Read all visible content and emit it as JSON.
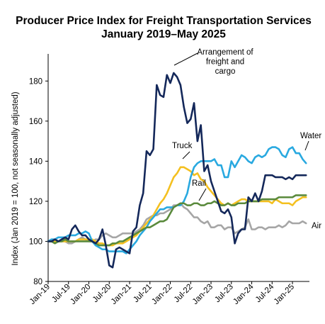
{
  "chart_data": {
    "type": "line",
    "title": "Producer Price Index for Freight Transportation Services",
    "subtitle": "January 2019–May 2025",
    "xlabel": "",
    "ylabel": "Index (Jan 2019 = 100, not seasonally adjusted)",
    "ylim": [
      80,
      190
    ],
    "yticks": [
      "80",
      "100",
      "120",
      "140",
      "160",
      "180"
    ],
    "xticks": [
      "Jan-19",
      "Jul-19",
      "Jan-20",
      "Jul-20",
      "Jan-21",
      "Jul-21",
      "Jan-22",
      "Jul-22",
      "Jan-23",
      "Jul-23",
      "Jan-24",
      "Jul-24",
      "Jan-25"
    ],
    "grid": false,
    "legend": "direct labels",
    "x_start": "2019-01",
    "series": [
      {
        "name": "Arrangement of freight and cargo",
        "color": "#14285a",
        "values": [
          100,
          100,
          101,
          100,
          101,
          102,
          101,
          106,
          108,
          105,
          103,
          103,
          101,
          100,
          99,
          101,
          106,
          98,
          88,
          87,
          96,
          97,
          96,
          95,
          94,
          105,
          107,
          118,
          124,
          145,
          143,
          146,
          178,
          173,
          172,
          183,
          179,
          184,
          182,
          178,
          167,
          159,
          161,
          169,
          150,
          158,
          135,
          138,
          130,
          125,
          120,
          115,
          114,
          116,
          112,
          99,
          104,
          106,
          106,
          122,
          120,
          124,
          120,
          125,
          133,
          133,
          133,
          132,
          132,
          132,
          131,
          132,
          131,
          133,
          133,
          133,
          133
        ]
      },
      {
        "name": "Water",
        "color": "#29a9e0",
        "values": [
          100,
          101,
          101,
          102,
          102,
          102,
          103,
          103,
          103,
          104,
          104,
          105,
          104,
          100,
          98,
          97,
          96,
          96,
          95,
          95,
          95,
          95,
          95,
          94,
          96,
          98,
          100,
          103,
          105,
          107,
          110,
          112,
          114,
          116,
          116,
          117,
          117,
          117,
          118,
          118,
          120,
          124,
          132,
          137,
          139,
          140,
          140,
          140,
          140,
          141,
          138,
          138,
          132,
          132,
          140,
          137,
          140,
          143,
          142,
          140,
          139,
          142,
          143,
          142,
          143,
          146,
          147,
          147,
          146,
          143,
          142,
          146,
          147,
          144,
          144,
          141,
          139
        ]
      },
      {
        "name": "Truck",
        "color": "#f4c020",
        "values": [
          100,
          100,
          100,
          100,
          100,
          100,
          100,
          100,
          100,
          101,
          101,
          101,
          101,
          101,
          100,
          99,
          99,
          98,
          98,
          98,
          99,
          99,
          99,
          100,
          101,
          102,
          103,
          105,
          107,
          109,
          111,
          113,
          116,
          119,
          121,
          124,
          128,
          132,
          134,
          137,
          137,
          136,
          135,
          133,
          134,
          131,
          130,
          127,
          125,
          123,
          121,
          119,
          118,
          119,
          118,
          119,
          120,
          121,
          121,
          120,
          120,
          120,
          120,
          120,
          120,
          120,
          119,
          121,
          120,
          119,
          119,
          119,
          118,
          120,
          121,
          122,
          122
        ]
      },
      {
        "name": "Rail",
        "color": "#5a8a3c",
        "values": [
          100,
          100,
          99,
          100,
          100,
          101,
          100,
          100,
          100,
          100,
          100,
          100,
          100,
          100,
          99,
          98,
          98,
          98,
          98,
          99,
          99,
          100,
          100,
          101,
          102,
          103,
          104,
          105,
          106,
          107,
          107,
          108,
          109,
          110,
          110,
          111,
          114,
          117,
          118,
          119,
          119,
          118,
          118,
          119,
          119,
          118,
          118,
          119,
          119,
          120,
          119,
          118,
          118,
          119,
          118,
          118,
          119,
          119,
          119,
          120,
          120,
          120,
          120,
          121,
          121,
          121,
          121,
          121,
          122,
          122,
          122,
          122,
          122,
          123,
          123,
          123,
          123
        ]
      },
      {
        "name": "Air",
        "color": "#a6a6a6",
        "values": [
          100,
          101,
          101,
          100,
          100,
          100,
          99,
          99,
          100,
          101,
          102,
          101,
          100,
          100,
          101,
          101,
          103,
          104,
          103,
          102,
          102,
          103,
          104,
          104,
          104,
          104,
          105,
          106,
          108,
          111,
          112,
          113,
          113,
          114,
          114,
          115,
          116,
          118,
          118,
          119,
          117,
          116,
          114,
          112,
          112,
          110,
          109,
          110,
          107,
          107,
          108,
          108,
          106,
          107,
          107,
          104,
          105,
          106,
          107,
          111,
          106,
          106,
          107,
          107,
          106,
          107,
          107,
          107,
          108,
          107,
          108,
          110,
          109,
          109,
          109,
          110,
          109
        ]
      }
    ],
    "labels": {
      "arrangement": "Arrangement of\nfreight and\ncargo",
      "water": "Water",
      "truck": "Truck",
      "rail": "Rail",
      "air": "Air"
    }
  }
}
